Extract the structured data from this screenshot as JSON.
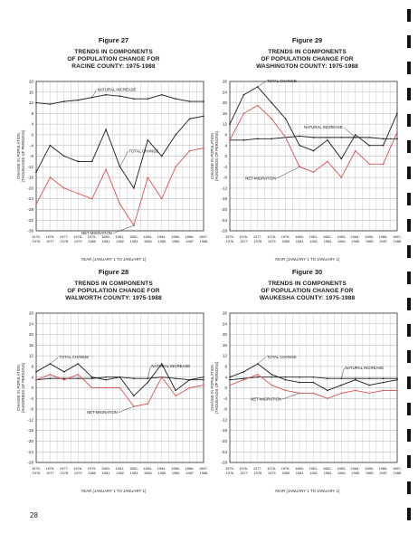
{
  "page": {
    "number": "28"
  },
  "edge_marks": [
    1,
    2,
    3,
    4,
    5,
    6,
    7,
    8,
    9,
    10,
    11,
    12,
    13,
    14,
    15,
    16,
    17,
    18,
    19,
    20
  ],
  "charts": [
    {
      "figure": "Figure 27",
      "title_lines": [
        "TRENDS IN COMPONENTS",
        "OF POPULATION CHANGE FOR",
        "RACINE COUNTY: 1975-1988"
      ],
      "ylabel_lines": [
        "CHANGE IN POPULATION",
        "(THOUSANDS OF PERSONS)"
      ],
      "xlabel": "YEAR (JANUARY 1 TO JANUARY 1)",
      "annotations": [
        "NATURAL INCREASE",
        "TOTAL CHANGE",
        "NET-MIGRATION"
      ]
    },
    {
      "figure": "Figure 29",
      "title_lines": [
        "TRENDS IN COMPONENTS",
        "OF POPULATION CHANGE FOR",
        "WASHINGTON COUNTY: 1975-1988"
      ],
      "ylabel_lines": [
        "CHANGE IN POPULATION",
        "(HUNDREDS OF PERSONS)"
      ],
      "xlabel": "YEAR (JANUARY 1 TO JANUARY 1)",
      "annotations": [
        "TOTAL CHANGE",
        "NATURAL INCREASE",
        "NET-MIGRATION"
      ]
    },
    {
      "figure": "Figure 28",
      "title_lines": [
        "TRENDS IN COMPONENTS",
        "OF POPULATION CHANGE FOR",
        "WALWORTH COUNTY: 1975-1988"
      ],
      "ylabel_lines": [
        "CHANGE IN POPULATION",
        "(HUNDREDS OF PERSONS)"
      ],
      "xlabel": "YEAR (JANUARY 1 TO JANUARY 1)",
      "annotations": [
        "TOTAL CHANGE",
        "NATURAL INCREASE",
        "NET-MIGRATION"
      ]
    },
    {
      "figure": "Figure 30",
      "title_lines": [
        "TRENDS IN COMPONENTS",
        "OF POPULATION CHANGE FOR",
        "WAUKESHA COUNTY: 1975-1988"
      ],
      "ylabel_lines": [
        "CHANGE IN POPULATION",
        "(THOUSANDS OF PERSONS)"
      ],
      "xlabel": "YEAR (JANUARY 1 TO JANUARY 1)",
      "annotations": [
        "TOTAL CHANGE",
        "NATURAL INCREASE",
        "NET-MIGRATION"
      ]
    }
  ],
  "chart_data": [
    {
      "type": "line",
      "x": [
        "1975-1976",
        "1976-1977",
        "1977-1978",
        "1978-1979",
        "1979-1980",
        "1980-1981",
        "1981-1982",
        "1982-1983",
        "1983-1984",
        "1984-1985",
        "1985-1986",
        "1986-1987",
        "1987-1988"
      ],
      "x_tick_top": [
        "1975-",
        "1976-",
        "1977-",
        "1978-",
        "1979-",
        "1980-",
        "1981-",
        "1982-",
        "1983-",
        "1984-",
        "1985-",
        "1986-",
        "1987-"
      ],
      "x_tick_bottom": [
        "1976",
        "1977",
        "1978",
        "1979",
        "1980",
        "1981",
        "1982",
        "1983",
        "1984",
        "1985",
        "1986",
        "1987",
        "1988"
      ],
      "ylim": [
        -36,
        20
      ],
      "yticks": [
        20,
        16,
        12,
        8,
        4,
        0,
        -4,
        -8,
        -12,
        -16,
        -20,
        -24,
        -28,
        -32,
        -36
      ],
      "grid": true,
      "series": [
        {
          "name": "NATURAL INCREASE",
          "color": "#1a1a1a",
          "values": [
            12,
            11.5,
            12.5,
            13,
            14,
            15,
            14.5,
            13.5,
            13.5,
            15,
            13.5,
            12.5,
            12.5
          ]
        },
        {
          "name": "TOTAL CHANGE",
          "color": "#1a1a1a",
          "values": [
            -14,
            -4,
            -8,
            -10,
            -10,
            2,
            -12,
            -20,
            -2,
            -8,
            0,
            6,
            7
          ]
        },
        {
          "name": "NET-MIGRATION",
          "color": "#d9534f",
          "values": [
            -26,
            -16,
            -20,
            -22,
            -24,
            -13,
            -26,
            -34,
            -16,
            -24,
            -12,
            -6,
            -5
          ]
        }
      ]
    },
    {
      "type": "line",
      "x": [
        "1975-1976",
        "1976-1977",
        "1977-1978",
        "1978-1979",
        "1979-1980",
        "1980-1981",
        "1981-1982",
        "1982-1983",
        "1983-1984",
        "1984-1985",
        "1985-1986",
        "1986-1987",
        "1987-1988"
      ],
      "x_tick_top": [
        "1975-",
        "1976-",
        "1977-",
        "1978-",
        "1979-",
        "1980-",
        "1981-",
        "1982-",
        "1983-",
        "1984-",
        "1985-",
        "1986-",
        "1987-"
      ],
      "x_tick_bottom": [
        "1976",
        "1977",
        "1978",
        "1979",
        "1980",
        "1981",
        "1982",
        "1983",
        "1984",
        "1985",
        "1986",
        "1987",
        "1988"
      ],
      "ylim": [
        -28,
        28
      ],
      "yticks": [
        28,
        24,
        20,
        16,
        12,
        8,
        4,
        0,
        -4,
        -8,
        -12,
        -16,
        -20,
        -24,
        -28
      ],
      "grid": true,
      "series": [
        {
          "name": "TOTAL CHANGE",
          "color": "#1a1a1a",
          "values": [
            12,
            23,
            26,
            20,
            14,
            4,
            2,
            6,
            -1,
            8,
            4,
            4,
            16
          ]
        },
        {
          "name": "NATURAL INCREASE",
          "color": "#1a1a1a",
          "values": [
            6,
            6,
            6.5,
            6.5,
            7,
            7.5,
            7,
            7,
            7,
            7,
            7,
            6.5,
            6.5
          ]
        },
        {
          "name": "NET-MIGRATION",
          "color": "#d9534f",
          "values": [
            6,
            16,
            19,
            14,
            7,
            -4,
            -6,
            -2,
            -8,
            2,
            -3,
            -3,
            9
          ]
        }
      ]
    },
    {
      "type": "line",
      "x": [
        "1975-1976",
        "1976-1977",
        "1977-1978",
        "1978-1979",
        "1979-1980",
        "1980-1981",
        "1981-1982",
        "1982-1983",
        "1983-1984",
        "1984-1985",
        "1985-1986",
        "1986-1987",
        "1987-1988"
      ],
      "x_tick_top": [
        "1975-",
        "1976-",
        "1977-",
        "1978-",
        "1979-",
        "1980-",
        "1981-",
        "1982-",
        "1983-",
        "1984-",
        "1985-",
        "1986-",
        "1987-"
      ],
      "x_tick_bottom": [
        "1976",
        "1977",
        "1978",
        "1979",
        "1980",
        "1981",
        "1982",
        "1983",
        "1984",
        "1985",
        "1986",
        "1987",
        "1988"
      ],
      "ylim": [
        -28,
        28
      ],
      "yticks": [
        28,
        24,
        20,
        16,
        12,
        8,
        4,
        0,
        -4,
        -8,
        -12,
        -16,
        -20,
        -24,
        -28
      ],
      "grid": true,
      "series": [
        {
          "name": "TOTAL CHANGE",
          "color": "#1a1a1a",
          "values": [
            6,
            9,
            6,
            9,
            4,
            3,
            4,
            -3,
            2,
            9,
            -1,
            3,
            4
          ]
        },
        {
          "name": "NATURAL INCREASE",
          "color": "#1a1a1a",
          "values": [
            3,
            3.5,
            3.5,
            3.5,
            3.5,
            4,
            4,
            3.5,
            3.5,
            4,
            3.5,
            3,
            3
          ]
        },
        {
          "name": "NET-MIGRATION",
          "color": "#d9534f",
          "values": [
            3,
            5,
            3,
            5,
            0,
            0,
            0,
            -7,
            -6,
            4,
            -3,
            0,
            1
          ]
        }
      ]
    },
    {
      "type": "line",
      "x": [
        "1975-1976",
        "1976-1977",
        "1977-1978",
        "1978-1979",
        "1979-1980",
        "1980-1981",
        "1981-1982",
        "1982-1983",
        "1983-1984",
        "1984-1985",
        "1985-1986",
        "1986-1987",
        "1987-1988"
      ],
      "x_tick_top": [
        "1975-",
        "1976-",
        "1977-",
        "1978-",
        "1979-",
        "1980-",
        "1981-",
        "1982-",
        "1983-",
        "1984-",
        "1985-",
        "1986-",
        "1987-"
      ],
      "x_tick_bottom": [
        "1976",
        "1977",
        "1978",
        "1979",
        "1980",
        "1981",
        "1982",
        "1983",
        "1984",
        "1985",
        "1986",
        "1987",
        "1988"
      ],
      "ylim": [
        -28,
        28
      ],
      "yticks": [
        28,
        24,
        20,
        16,
        12,
        8,
        4,
        0,
        -4,
        -8,
        -12,
        -16,
        -20,
        -24,
        -28
      ],
      "grid": true,
      "series": [
        {
          "name": "TOTAL CHANGE",
          "color": "#1a1a1a",
          "values": [
            4,
            6,
            9,
            5,
            3,
            2,
            2,
            -1,
            1,
            3,
            1,
            2,
            3
          ]
        },
        {
          "name": "NATURAL INCREASE",
          "color": "#1a1a1a",
          "values": [
            3,
            3.5,
            4,
            4,
            4,
            4,
            4,
            3.5,
            3.5,
            3.5,
            3.5,
            3.5,
            3.5
          ]
        },
        {
          "name": "NET-MIGRATION",
          "color": "#d9534f",
          "values": [
            1,
            3,
            5,
            1,
            -1,
            -2,
            -2,
            -4,
            -2,
            -1,
            -2,
            -1,
            -1
          ]
        }
      ]
    }
  ]
}
